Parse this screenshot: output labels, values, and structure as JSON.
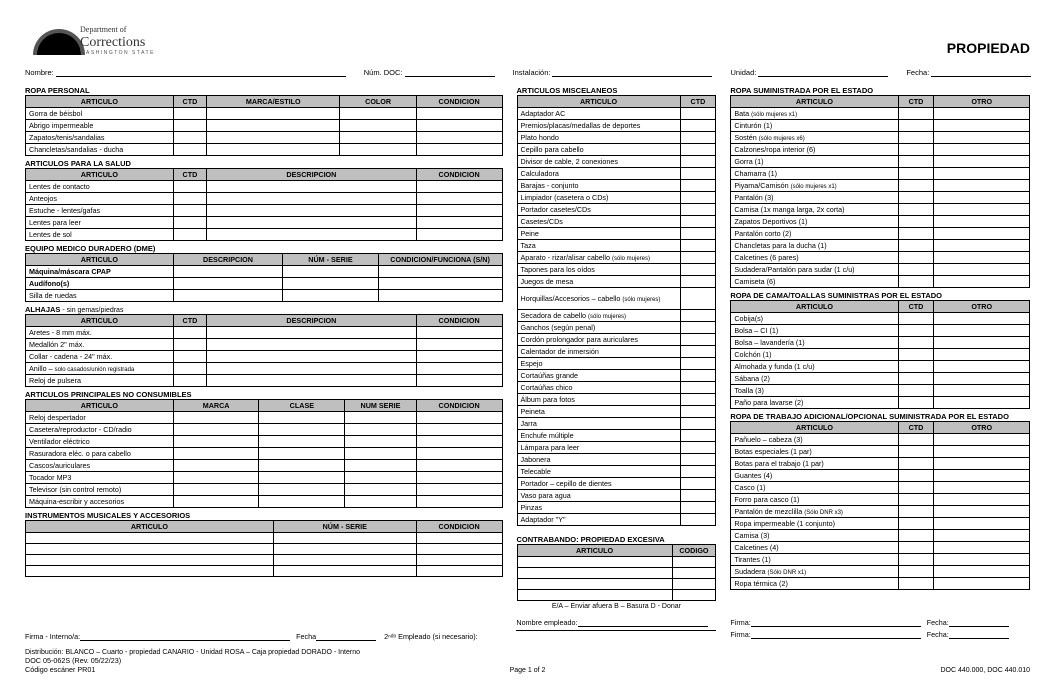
{
  "header": {
    "dept": "Department of",
    "name": "Corrections",
    "state": "WASHINGTON STATE",
    "title": "PROPIEDAD"
  },
  "fields": {
    "nombre": "Nombre:",
    "numdoc": "Núm. DOC:",
    "instalacion": "Instalación:",
    "unidad": "Unidad:",
    "fecha": "Fecha:"
  },
  "col1": {
    "s1": {
      "title": "ROPA PERSONAL",
      "headers": [
        "ARTICULO",
        "CTD",
        "MARCA/ESTILO",
        "COLOR",
        "CONDICION"
      ],
      "rows": [
        "Gorra de béisbol",
        "Abrigo impermeable",
        "Zapatos/tenis/sandalias",
        "Chancletas/sandalias - ducha"
      ]
    },
    "s2": {
      "title": "ARTICULOS PARA LA SALUD",
      "headers": [
        "ARTICULO",
        "CTD",
        "DESCRIPCION",
        "CONDICION"
      ],
      "rows": [
        "Lentes de contacto",
        "Anteojos",
        "Estuche - lentes/gafas",
        "Lentes para leer",
        "Lentes de sol"
      ]
    },
    "s3": {
      "title": "EQUIPO MEDICO DURADERO (DME)",
      "headers": [
        "ARTICULO",
        "DESCRIPCION",
        "NÚM - SERIE",
        "CONDICION/FUNCIONA (S/N)"
      ],
      "rows": [
        "Máquina/máscara CPAP",
        "Audífono(s)",
        "Silla de ruedas"
      ]
    },
    "s4": {
      "title": "ALHAJAS",
      "note": " - sin gemas/piedras",
      "headers": [
        "ARTICULO",
        "CTD",
        "DESCRIPCION",
        "CONDICION"
      ],
      "rows": [
        "Aretes - 8 mm máx.",
        "Medallón 2\" máx.",
        "Collar - cadena - 24\" máx.",
        "Anillo – solo casados/unión registrada",
        "Reloj de pulsera"
      ]
    },
    "s5": {
      "title": "ARTICULOS PRINCIPALES NO CONSUMIBLES",
      "headers": [
        "ARTICULO",
        "MARCA",
        "CLASE",
        "NUM SERIE",
        "CONDICION"
      ],
      "rows": [
        "Reloj despertador",
        "Casetera/reproductor - CD/radio",
        "Ventilador eléctrico",
        "Rasuradora eléc. o para cabello",
        "Cascos/auriculares",
        "Tocador MP3",
        "Televisor (sin control remoto)",
        "Máquina-escribir y accesorios"
      ]
    },
    "s6": {
      "title": "INSTRUMENTOS MUSICALES Y ACCESORIOS",
      "headers": [
        "ARTICULO",
        "NÚM - SERIE",
        "CONDICION"
      ],
      "rows": [
        "",
        "",
        "",
        ""
      ]
    }
  },
  "col2": {
    "s1": {
      "title": "ARTICULOS MISCELANEOS",
      "headers": [
        "ARTICULO",
        "CTD"
      ],
      "rows": [
        "Adaptador AC",
        "Premios/placas/medallas de deportes",
        "Plato hondo",
        "Cepillo para cabello",
        "Divisor de cable, 2 conexiones",
        "Calculadora",
        "Barajas - conjunto",
        "Limpiador (casetera o CDs)",
        "Portador casetes/CDs",
        "Casetes/CDs",
        "Peine",
        "Taza",
        "Aparato - rizar/alisar cabello (sólo mujeres)",
        "Tapones para los oídos",
        "Juegos de mesa",
        "Horquillas/Accesorios – cabello (sólo mujeres)",
        "Secadora de cabello (sólo mujeres)",
        "Ganchos (según penal)",
        "Cordón prolongador para auriculares",
        "Calentador de inmersión",
        "Espejo",
        "Cortaúñas grande",
        "Cortaúñas chico",
        "Álbum para fotos",
        "Peineta",
        "Jarra",
        "Enchufe múltiple",
        "Lámpara para leer",
        "Jabonera",
        "Telecable",
        "Portador – cepillo de dientes",
        "Vaso para agua",
        "Pinzas",
        "Adaptador \"Y\""
      ]
    },
    "s2": {
      "title": "CONTRABANDO: PROPIEDAD EXCESIVA",
      "headers": [
        "ARTICULO",
        "CODIGO"
      ],
      "rows": [
        "",
        "",
        "",
        ""
      ]
    },
    "legend": "E/A – Enviar afuera     B – Basura     D - Donar"
  },
  "col3": {
    "s1": {
      "title": "ROPA SUMINISTRADA POR EL ESTADO",
      "headers": [
        "ARTICULO",
        "CTD",
        "OTRO"
      ],
      "rows": [
        "Bata (sólo mujeres x1)",
        "Cinturón (1)",
        "Sostén (sólo mujeres x6)",
        "Calzones/ropa interior (6)",
        "Gorra (1)",
        "Chamarra (1)",
        "Piyama/Camisón (sólo mujeres x1)",
        "Pantalón (3)",
        "Camisa (1x manga larga, 2x corta)",
        "Zapatos Deportivos (1)",
        "Pantalón corto (2)",
        "Chancletas para la ducha (1)",
        "Calcetines (6 pares)",
        "Sudadera/Pantalón para sudar (1 c/u)",
        "Camiseta (6)"
      ]
    },
    "s2": {
      "title": "ROPA DE CAMA/TOALLAS SUMINISTRAS POR EL ESTADO",
      "headers": [
        "ARTICULO",
        "CTD",
        "OTRO"
      ],
      "rows": [
        "Cobija(s)",
        "Bolsa – CI (1)",
        "Bolsa – lavandería (1)",
        "Colchón (1)",
        "Almohada y funda (1 c/u)",
        "Sábana (2)",
        "Toalla (3)",
        "Paño para lavarse (2)"
      ]
    },
    "s3": {
      "title": "ROPA DE TRABAJO ADICIONAL/OPCIONAL SUMINISTRADA POR EL ESTADO",
      "headers": [
        "ARTICULO",
        "CTD",
        "OTRO"
      ],
      "rows": [
        "Pañuelo – cabeza (3)",
        "Botas especiales (1 par)",
        "Botas para el trabajo (1 par)",
        "Guantes (4)",
        "Casco (1)",
        "Forro para casco (1)",
        "Pantalón de mezclilla (Sólo DNR x3)",
        "Ropa impermeable (1 conjunto)",
        "Camisa (3)",
        "Calcetines (4)",
        "Tirantes (1)",
        "Sudadera (Sólo DNR x1)",
        "Ropa térmica (2)"
      ]
    }
  },
  "footer": {
    "firma_interno": "Firma - Interno/a:",
    "fecha": "Fecha",
    "segundo": "2ⁿᵈᵒ Empleado (si necesario):",
    "nombre_emp": "Nombre empleado:",
    "firma": "Firma:",
    "fecha2": "Fecha:",
    "dist": "Distribución:  BLANCO – Cuarto - propiedad  CANARIO - Unidad  ROSA – Caja propiedad  DORADO - Interno",
    "docnum": "DOC 05-062S (Rev. 05/22/23)",
    "scanner": "Código escáner PR01",
    "page": "Page 1 of 2",
    "docref": "DOC 440.000, DOC 440.010"
  }
}
